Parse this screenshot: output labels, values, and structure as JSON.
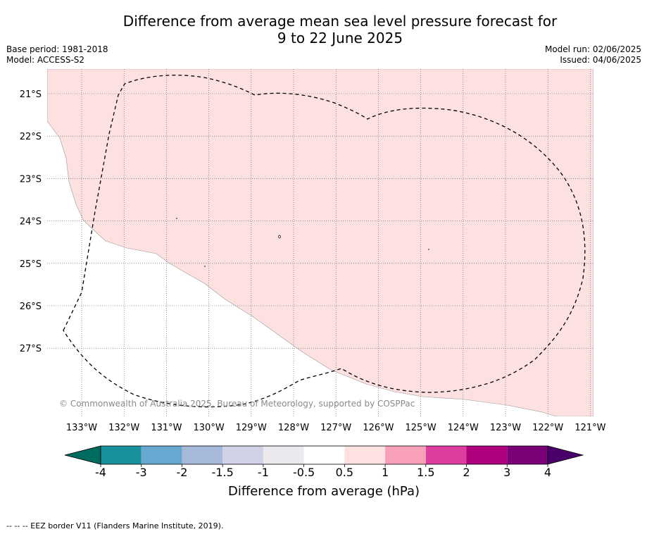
{
  "title_line1": "Difference from average mean sea level pressure forecast for",
  "title_line2": "9 to 22 June 2025",
  "base_period": "Base period: 1981-2018",
  "model": "Model: ACCESS-S2",
  "model_run": "Model run: 02/06/2025",
  "issued": "Issued: 04/06/2025",
  "copyright": "© Commonwealth of Australia 2025, Bureau of Meteorology, supported by COSPPac",
  "lat_labels": [
    "21°S",
    "22°S",
    "23°S",
    "24°S",
    "25°S",
    "26°S",
    "27°S"
  ],
  "lon_labels": [
    "133°W",
    "132°W",
    "131°W",
    "130°W",
    "129°W",
    "128°W",
    "127°W",
    "126°W",
    "125°W",
    "124°W",
    "123°W",
    "122°W",
    "121°W"
  ],
  "colorbar": {
    "ticks": [
      "-4",
      "-3",
      "-2",
      "-1.5",
      "-1",
      "-0.5",
      "0.5",
      "1",
      "1.5",
      "2",
      "3",
      "4"
    ],
    "colors": [
      "#18919a",
      "#65a9d0",
      "#a7b9da",
      "#d0d0e6",
      "#ebe8ee",
      "#ffffff",
      "#fde0e0",
      "#f89fba",
      "#dd3d9f",
      "#ad017e",
      "#7a0177"
    ],
    "extend_low_color": "#006b5f",
    "extend_high_color": "#4a006a",
    "label": "Difference from average (hPa)"
  },
  "footer": "--  --  -- EEZ border V11 (Flanders Marine Institute, 2019)."
}
